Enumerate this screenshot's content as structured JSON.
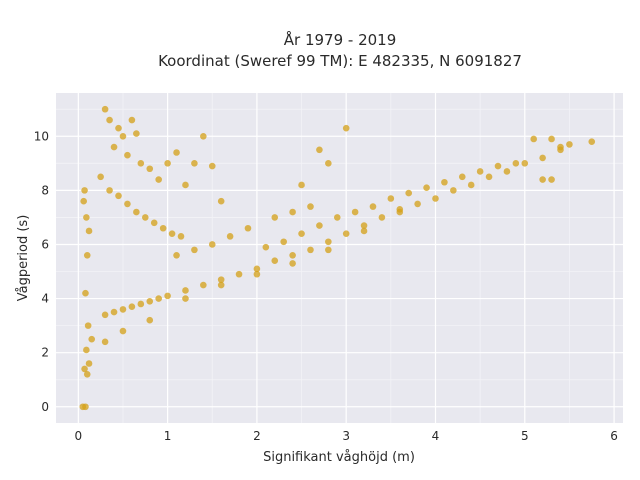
{
  "chart_data": {
    "type": "scatter",
    "title_line1": "År 1979 - 2019",
    "title_line2": "Koordinat (Sweref 99 TM): E 482335, N 6091827",
    "xlabel": "Signifikant våghöjd (m)",
    "ylabel": "Vågperiod (s)",
    "xlim": [
      -0.25,
      6.1
    ],
    "ylim": [
      -0.6,
      11.6
    ],
    "xticks": [
      0,
      1,
      2,
      3,
      4,
      5,
      6
    ],
    "yticks": [
      0,
      2,
      4,
      6,
      8,
      10
    ],
    "grid": true,
    "marker_color": "#D4A017",
    "plot_bg": "#E8E8EF",
    "series": [
      {
        "points": [
          [
            0.05,
            0.0
          ],
          [
            0.08,
            0.0
          ],
          [
            0.07,
            1.4
          ],
          [
            0.1,
            1.2
          ],
          [
            0.12,
            1.6
          ],
          [
            0.09,
            2.1
          ],
          [
            0.15,
            2.5
          ],
          [
            0.11,
            3.0
          ],
          [
            0.08,
            4.2
          ],
          [
            0.1,
            5.6
          ],
          [
            0.06,
            7.6
          ],
          [
            0.07,
            8.0
          ],
          [
            0.09,
            7.0
          ],
          [
            0.12,
            6.5
          ],
          [
            0.3,
            11.0
          ],
          [
            0.35,
            10.6
          ],
          [
            0.45,
            10.3
          ],
          [
            0.6,
            10.6
          ],
          [
            0.65,
            10.1
          ],
          [
            0.5,
            10.0
          ],
          [
            0.4,
            9.6
          ],
          [
            0.55,
            9.3
          ],
          [
            0.7,
            9.0
          ],
          [
            0.8,
            8.8
          ],
          [
            0.9,
            8.4
          ],
          [
            1.0,
            9.0
          ],
          [
            1.1,
            9.4
          ],
          [
            1.3,
            9.0
          ],
          [
            1.5,
            8.9
          ],
          [
            1.4,
            10.0
          ],
          [
            1.2,
            8.2
          ],
          [
            1.6,
            7.6
          ],
          [
            0.25,
            8.5
          ],
          [
            0.35,
            8.0
          ],
          [
            0.45,
            7.8
          ],
          [
            0.55,
            7.5
          ],
          [
            0.65,
            7.2
          ],
          [
            0.75,
            7.0
          ],
          [
            0.85,
            6.8
          ],
          [
            0.95,
            6.6
          ],
          [
            1.05,
            6.4
          ],
          [
            1.15,
            6.3
          ],
          [
            0.3,
            3.4
          ],
          [
            0.4,
            3.5
          ],
          [
            0.5,
            3.6
          ],
          [
            0.6,
            3.7
          ],
          [
            0.7,
            3.8
          ],
          [
            0.8,
            3.9
          ],
          [
            0.9,
            4.0
          ],
          [
            1.0,
            4.1
          ],
          [
            1.2,
            4.3
          ],
          [
            1.4,
            4.5
          ],
          [
            1.6,
            4.7
          ],
          [
            1.8,
            4.9
          ],
          [
            2.0,
            5.1
          ],
          [
            2.2,
            5.4
          ],
          [
            2.4,
            5.6
          ],
          [
            2.6,
            5.8
          ],
          [
            2.8,
            6.1
          ],
          [
            3.0,
            6.4
          ],
          [
            3.2,
            6.7
          ],
          [
            3.4,
            7.0
          ],
          [
            3.6,
            7.2
          ],
          [
            3.8,
            7.5
          ],
          [
            4.0,
            7.7
          ],
          [
            4.2,
            8.0
          ],
          [
            4.4,
            8.2
          ],
          [
            4.6,
            8.5
          ],
          [
            4.8,
            8.7
          ],
          [
            5.0,
            9.0
          ],
          [
            5.2,
            9.2
          ],
          [
            5.4,
            9.5
          ],
          [
            5.5,
            9.7
          ],
          [
            5.75,
            9.8
          ],
          [
            5.1,
            9.9
          ],
          [
            5.3,
            9.9
          ],
          [
            5.4,
            9.6
          ],
          [
            4.9,
            9.0
          ],
          [
            5.2,
            8.4
          ],
          [
            5.3,
            8.4
          ],
          [
            2.4,
            7.2
          ],
          [
            2.6,
            7.4
          ],
          [
            2.7,
            9.5
          ],
          [
            3.0,
            10.3
          ],
          [
            2.8,
            9.0
          ],
          [
            2.5,
            8.2
          ],
          [
            2.2,
            7.0
          ],
          [
            1.9,
            6.6
          ],
          [
            1.7,
            6.3
          ],
          [
            1.5,
            6.0
          ],
          [
            1.3,
            5.8
          ],
          [
            1.1,
            5.6
          ],
          [
            2.1,
            5.9
          ],
          [
            2.3,
            6.1
          ],
          [
            2.5,
            6.4
          ],
          [
            2.7,
            6.7
          ],
          [
            2.9,
            7.0
          ],
          [
            3.1,
            7.2
          ],
          [
            3.3,
            7.4
          ],
          [
            3.5,
            7.7
          ],
          [
            3.7,
            7.9
          ],
          [
            3.9,
            8.1
          ],
          [
            4.1,
            8.3
          ],
          [
            4.3,
            8.5
          ],
          [
            4.5,
            8.7
          ],
          [
            4.7,
            8.9
          ],
          [
            3.6,
            7.3
          ],
          [
            3.2,
            6.5
          ],
          [
            2.8,
            5.8
          ],
          [
            2.4,
            5.3
          ],
          [
            2.0,
            4.9
          ],
          [
            1.6,
            4.5
          ],
          [
            1.2,
            4.0
          ],
          [
            0.8,
            3.2
          ],
          [
            0.5,
            2.8
          ],
          [
            0.3,
            2.4
          ]
        ]
      }
    ]
  }
}
